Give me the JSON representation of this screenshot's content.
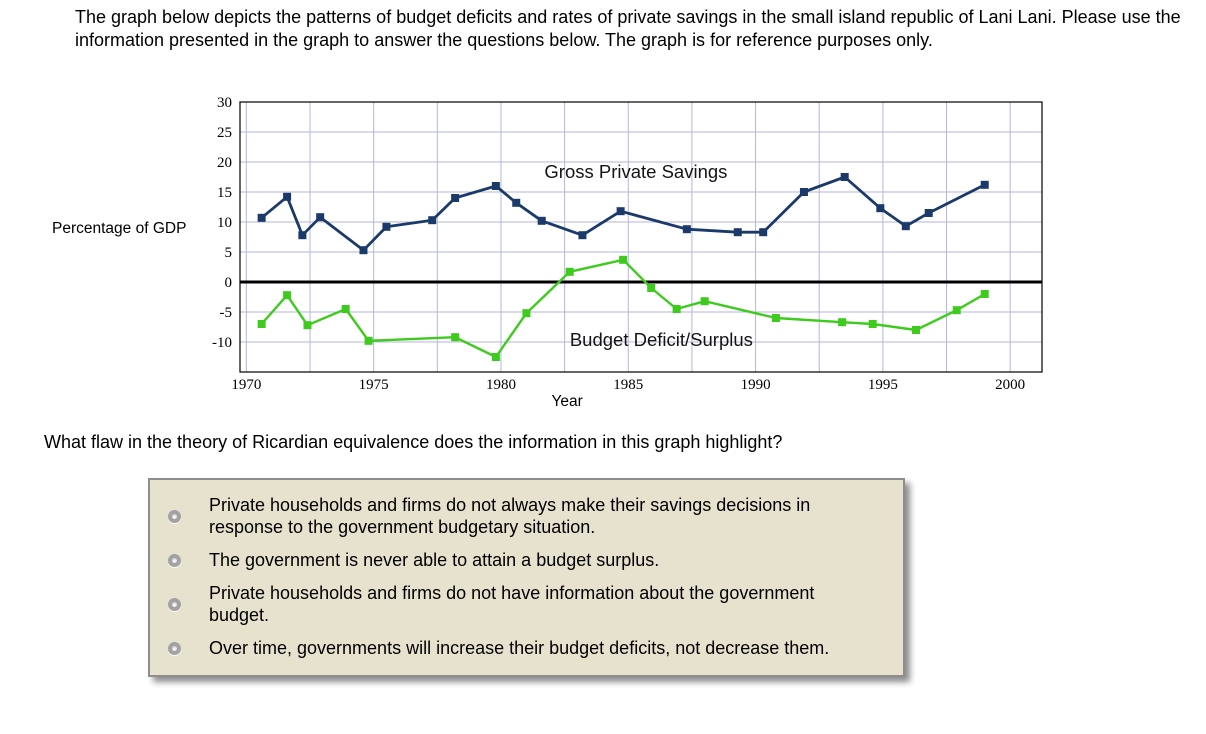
{
  "intro": {
    "text": "The graph below depicts the patterns of budget deficits and rates of private savings in the small island republic of Lani Lani. Please use the information presented in the graph to answer the questions below. The graph is for reference purposes only."
  },
  "question": {
    "text": "What flaw in the theory of Ricardian equivalence does the information in this graph highlight?"
  },
  "options": [
    {
      "label": "Private households and firms do not always make their savings decisions in response to the government budgetary situation."
    },
    {
      "label": "The government is never able to attain a budget surplus."
    },
    {
      "label": "Private households and firms do not have information about the government budget."
    },
    {
      "label": "Over time, governments will increase their budget deficits, not decrease them."
    }
  ],
  "chart_data": {
    "type": "line",
    "title": "",
    "xlabel": "Year",
    "ylabel": "Percentage of GDP",
    "xlim": [
      1969.75,
      2001.25
    ],
    "ylim": [
      -15,
      30
    ],
    "x_ticks": [
      1970,
      1975,
      1980,
      1985,
      1990,
      1995,
      2000
    ],
    "y_ticks": [
      30,
      25,
      20,
      15,
      10,
      5,
      0,
      -5,
      -10
    ],
    "x_grid_step": 2.5,
    "grid": true,
    "grid_color": "#b3b6de",
    "zero_line": true,
    "zero_line_color": "#000000",
    "xlabel_x": 1982.6,
    "ylabel_y": 9,
    "series": [
      {
        "name": "Gross Private Savings",
        "color": "#1b3a6a",
        "line_width": 2.8,
        "label_x": 1985.3,
        "label_y": 17.3,
        "points": [
          [
            1970.6,
            10.7
          ],
          [
            1971.6,
            14.2
          ],
          [
            1972.2,
            7.8
          ],
          [
            1972.9,
            10.8
          ],
          [
            1974.6,
            5.3
          ],
          [
            1975.5,
            9.2
          ],
          [
            1977.3,
            10.3
          ],
          [
            1978.2,
            14.0
          ],
          [
            1979.8,
            16.0
          ],
          [
            1980.6,
            13.2
          ],
          [
            1981.6,
            10.2
          ],
          [
            1983.2,
            7.8
          ],
          [
            1984.7,
            11.8
          ],
          [
            1987.3,
            8.8
          ],
          [
            1989.3,
            8.3
          ],
          [
            1990.3,
            8.3
          ],
          [
            1991.9,
            15.0
          ],
          [
            1993.5,
            17.5
          ],
          [
            1994.9,
            12.3
          ],
          [
            1995.9,
            9.3
          ],
          [
            1996.8,
            11.5
          ],
          [
            1999.0,
            16.2
          ]
        ]
      },
      {
        "name": "Budget Deficit/Surplus",
        "color": "#3ecb1e",
        "line_width": 2.4,
        "label_x": 1986.3,
        "label_y": -10.7,
        "points": [
          [
            1970.6,
            -7.0
          ],
          [
            1971.6,
            -2.2
          ],
          [
            1972.4,
            -7.2
          ],
          [
            1973.9,
            -4.5
          ],
          [
            1974.8,
            -9.8
          ],
          [
            1978.2,
            -9.2
          ],
          [
            1979.8,
            -12.5
          ],
          [
            1981.0,
            -5.2
          ],
          [
            1982.7,
            1.7
          ],
          [
            1984.8,
            3.7
          ],
          [
            1985.9,
            -1.0
          ],
          [
            1986.9,
            -4.5
          ],
          [
            1988.0,
            -3.2
          ],
          [
            1990.8,
            -6.0
          ],
          [
            1993.4,
            -6.7
          ],
          [
            1994.6,
            -7.0
          ],
          [
            1996.3,
            -8.0
          ],
          [
            1997.9,
            -4.7
          ],
          [
            1999.0,
            -2.0
          ]
        ]
      }
    ]
  }
}
